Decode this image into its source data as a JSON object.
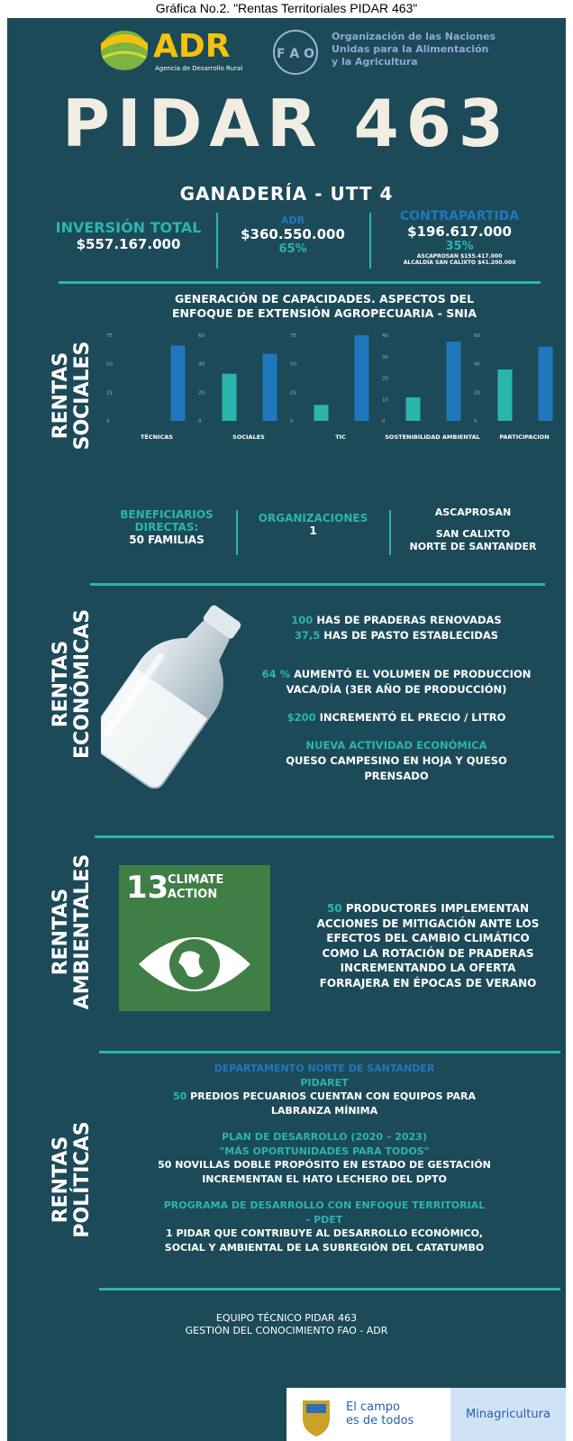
{
  "header": {
    "caption": "Gráfica No.2. \"Rentas Territoriales PIDAR 463\"",
    "adr_name": "ADR",
    "adr_tagline": "Agencia de Desarrollo Rural",
    "fao_lines": [
      "Organización de las Naciones",
      "Unidas para la Alimentación",
      "y la Agricultura"
    ],
    "title": "PIDAR 463",
    "subtitle": "GANADERÍA - UTT 4"
  },
  "investment": {
    "total_label": "INVERSIÓN TOTAL",
    "total": "$557.167.000",
    "adr_label": "ADR",
    "adr_value": "$360.550.000",
    "adr_pct": "65%",
    "counterpart_label": "CONTRAPARTIDA",
    "counterpart_value": "$196.617.000",
    "counterpart_pct": "35%",
    "details": [
      "ASCAPROSAN $155.417.000",
      "ALCALDÍA SAN CALIXTO $41.200.000"
    ]
  },
  "social": {
    "heading": [
      "RENTAS",
      "SOCIALES"
    ],
    "chart_title": [
      "GENERACIÓN DE CAPACIDADES. ASPECTOS DEL",
      "ENFOQUE DE EXTENSIÓN AGROPECUARIA -   SNIA"
    ],
    "beneficiaries_label": [
      "BENEFICIARIOS",
      "DIRECTAS:"
    ],
    "beneficiaries_value": "50 FAMILIAS",
    "organizations_label": "ORGANIZACIONES",
    "organizations_value": "1",
    "org_name": "ASCAPROSAN",
    "location": [
      "SAN CALIXTO",
      "NORTE DE SANTANDER"
    ]
  },
  "chart_data": [
    {
      "type": "bar",
      "categories": [
        "TÉCNICAS"
      ],
      "series": [
        {
          "color": "#2ab5ad",
          "values": [
            0
          ]
        },
        {
          "color": "#1f78bd",
          "values": [
            66
          ]
        }
      ],
      "ylim": [
        0,
        75
      ],
      "yticks": [
        0,
        25,
        50,
        75
      ]
    },
    {
      "type": "bar",
      "categories": [
        "SOCIALES"
      ],
      "series": [
        {
          "color": "#2ab5ad",
          "values": [
            33
          ]
        },
        {
          "color": "#1f78bd",
          "values": [
            47
          ]
        }
      ],
      "ylim": [
        0,
        60
      ],
      "yticks": [
        0,
        20,
        40,
        60
      ]
    },
    {
      "type": "bar",
      "categories": [
        "TIC"
      ],
      "series": [
        {
          "color": "#2ab5ad",
          "values": [
            14
          ]
        },
        {
          "color": "#1f78bd",
          "values": [
            75
          ]
        }
      ],
      "ylim": [
        0,
        75
      ],
      "yticks": [
        0,
        25,
        50,
        75
      ]
    },
    {
      "type": "bar",
      "categories": [
        "SOSTENIBILIDAD AMBIENTAL"
      ],
      "series": [
        {
          "color": "#2ab5ad",
          "values": [
            11
          ]
        },
        {
          "color": "#1f78bd",
          "values": [
            37
          ]
        }
      ],
      "ylim": [
        0,
        40
      ],
      "yticks": [
        0,
        10,
        20,
        30,
        40
      ]
    },
    {
      "type": "bar",
      "categories": [
        "PARTICIPACION"
      ],
      "series": [
        {
          "color": "#2ab5ad",
          "values": [
            36
          ]
        },
        {
          "color": "#1f78bd",
          "values": [
            52
          ]
        }
      ],
      "ylim": [
        0,
        60
      ],
      "yticks": [
        0,
        20,
        40,
        60
      ]
    }
  ],
  "economic": {
    "heading": [
      "RENTAS",
      "ECONÓMICAS"
    ],
    "items": [
      {
        "hl": "100",
        "text": "HAS DE PRADERAS RENOVADAS"
      },
      {
        "hl": "37,5",
        "text": "HAS DE PASTO ESTABLECIDAS"
      },
      {
        "hl": "64 %",
        "text": "AUMENTÓ EL VOLUMEN DE PRODUCCION"
      },
      {
        "text": "VACA/DÍA (3ER AÑO DE PRODUCCIÓN)"
      },
      {
        "hl": "$200",
        "text": "INCREMENTÓ EL PRECIO / LITRO"
      }
    ],
    "activity_title": "NUEVA ACTIVIDAD ECONÓMICA",
    "activity_lines": [
      "QUESO CAMPESINO EN HOJA Y QUESO",
      "PRENSADO"
    ]
  },
  "environmental": {
    "heading": [
      "RENTAS",
      "AMBIENTALES"
    ],
    "sdg_number": "13",
    "sdg_label": [
      "CLIMATE",
      "ACTION"
    ],
    "hl": "50",
    "lines": [
      "PRODUCTORES IMPLEMENTAN",
      "ACCIONES DE MITIGACIÓN ANTE LOS",
      "EFECTOS DEL CAMBIO CLIMÁTICO",
      "COMO LA ROTACIÓN DE PRADERAS",
      "INCREMENTANDO LA OFERTA",
      "FORRAJERA EN ÉPOCAS DE VERANO"
    ]
  },
  "political": {
    "heading": [
      "RENTAS",
      "POLÍTICAS"
    ],
    "department": "DEPARTAMENTO NORTE DE SANTANDER",
    "pidaret": "PIDARET",
    "pidaret_hl": "50",
    "pidaret_lines": [
      "PREDIOS PECUARIOS CUENTAN CON EQUIPOS PARA",
      "LABRANZA MÍNIMA"
    ],
    "plan_title": [
      "PLAN DE DESARROLLO (2020 – 2023)",
      "\"MÁS OPORTUNIDADES PARA TODOS\""
    ],
    "plan_lines": [
      "50 NOVILLAS DOBLE PROPÓSITO EN ESTADO DE GESTACIÓN",
      "INCREMENTAN EL HATO LECHERO DEL DPTO"
    ],
    "pdet_title": [
      "PROGRAMA DE DESARROLLO CON ENFOQUE TERRITORIAL",
      "- PDET"
    ],
    "pdet_lines": [
      "1 PIDAR QUE CONTRIBUYE AL DESARROLLO ECONÓMICO,",
      "SOCIAL Y AMBIENTAL DE LA SUBREGIÓN DEL CATATUMBO"
    ]
  },
  "footer": {
    "credits": [
      "EQUIPO TÉCNICO PIDAR 463",
      "GESTIÓN DEL CONOCIMIENTO FAO - ADR"
    ],
    "campo": [
      "El campo",
      "es de todos"
    ],
    "ministry": "Minagricultura"
  }
}
